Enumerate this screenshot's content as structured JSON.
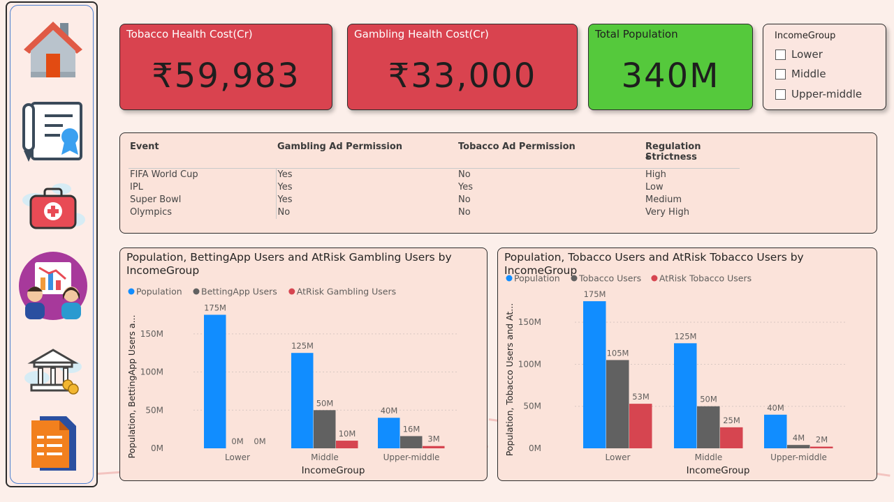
{
  "kpis": {
    "tobacco_cost": {
      "title": "Tobacco Health Cost(Cr)",
      "value": "₹59,983"
    },
    "gambling_cost": {
      "title": "Gambling Health Cost(Cr)",
      "value": "₹33,000"
    },
    "population": {
      "title": "Total Population",
      "value": "340M"
    }
  },
  "slicer": {
    "title": "IncomeGroup",
    "items": [
      {
        "label": "Lower"
      },
      {
        "label": "Middle"
      },
      {
        "label": "Upper-middle"
      }
    ]
  },
  "events_table": {
    "headers": [
      "Event",
      "Gambling Ad Permission",
      "Tobacco Ad Permission",
      "Regulation Strictness"
    ],
    "rows": [
      [
        "FIFA World Cup",
        "Yes",
        "No",
        "High"
      ],
      [
        "IPL",
        "Yes",
        "Yes",
        "Low"
      ],
      [
        "Super Bowl",
        "Yes",
        "No",
        "Medium"
      ],
      [
        "Olympics",
        "No",
        "No",
        "Very High"
      ]
    ]
  },
  "nav_icons": [
    "home-icon",
    "certificate-icon",
    "first-aid-kit-icon",
    "analysts-icon",
    "bank-icon",
    "document-icon"
  ],
  "colors": {
    "population": "#118dff",
    "users": "#616161",
    "atrisk": "#d64550",
    "kpi_red": "#d9434f",
    "kpi_green": "#55c93c"
  },
  "chart_data": [
    {
      "type": "bar",
      "title": "Population, BettingApp Users and AtRisk Gambling Users by IncomeGroup",
      "xlabel": "IncomeGroup",
      "ylabel": "Population, BettingApp Users a...",
      "ylim": [
        0,
        180
      ],
      "yticks": [
        "0M",
        "50M",
        "100M",
        "150M"
      ],
      "legend_position": "top-left",
      "grid": true,
      "categories": [
        "Lower",
        "Middle",
        "Upper-middle"
      ],
      "series": [
        {
          "name": "Population",
          "values": [
            175,
            125,
            40
          ],
          "labels": [
            "175M",
            "125M",
            "40M"
          ]
        },
        {
          "name": "BettingApp Users",
          "values": [
            0,
            50,
            16
          ],
          "labels": [
            "0M",
            "50M",
            "16M"
          ]
        },
        {
          "name": "AtRisk Gambling Users",
          "values": [
            0,
            10,
            3
          ],
          "labels": [
            "0M",
            "10M",
            "3M"
          ]
        }
      ]
    },
    {
      "type": "bar",
      "title": "Population, Tobacco Users and AtRisk Tobacco Users by IncomeGroup",
      "xlabel": "IncomeGroup",
      "ylabel": "Population, Tobacco Users and At...",
      "ylim": [
        0,
        180
      ],
      "yticks": [
        "0M",
        "50M",
        "100M",
        "150M"
      ],
      "legend_position": "top-left",
      "grid": true,
      "categories": [
        "Lower",
        "Middle",
        "Upper-middle"
      ],
      "series": [
        {
          "name": "Population",
          "values": [
            175,
            125,
            40
          ],
          "labels": [
            "175M",
            "125M",
            "40M"
          ]
        },
        {
          "name": "Tobacco Users",
          "values": [
            105,
            50,
            4
          ],
          "labels": [
            "105M",
            "50M",
            "4M"
          ]
        },
        {
          "name": "AtRisk Tobacco Users",
          "values": [
            53,
            25,
            2
          ],
          "labels": [
            "53M",
            "25M",
            "2M"
          ]
        }
      ]
    }
  ]
}
